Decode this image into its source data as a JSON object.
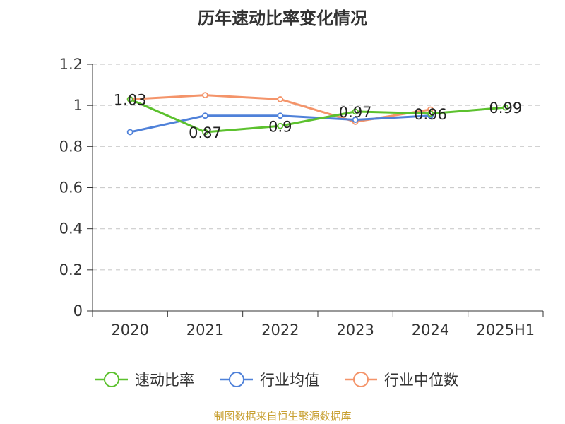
{
  "chart_data": {
    "type": "line",
    "title": "历年速动比率变化情况",
    "categories": [
      "2020",
      "2021",
      "2022",
      "2023",
      "2024",
      "2025H1"
    ],
    "ylim": [
      0,
      1.2
    ],
    "yticks": [
      "0",
      "0.2",
      "0.4",
      "0.6",
      "0.8",
      "1",
      "1.2"
    ],
    "grid": true,
    "legend_position": "bottom",
    "series": [
      {
        "name": "速动比率",
        "color": "#5cc12e",
        "values": [
          1.03,
          0.87,
          0.9,
          0.97,
          0.96,
          0.99
        ],
        "labels": [
          "1.03",
          "0.87",
          "0.9",
          "0.97",
          "0.96",
          "0.99"
        ]
      },
      {
        "name": "行业均值",
        "color": "#4f81d9",
        "values": [
          0.87,
          0.95,
          0.95,
          0.93,
          0.95,
          null
        ]
      },
      {
        "name": "行业中位数",
        "color": "#f4946a",
        "values": [
          1.03,
          1.05,
          1.03,
          0.92,
          0.98,
          null
        ]
      }
    ]
  },
  "source": "制图数据来自恒生聚源数据库"
}
